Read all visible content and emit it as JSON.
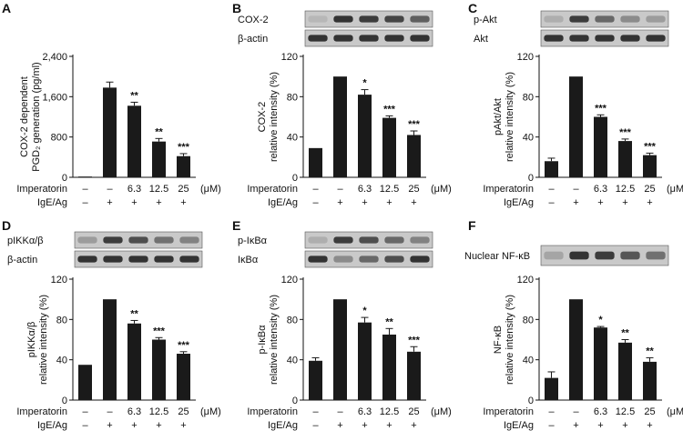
{
  "figure": {
    "rows": {
      "treatment_label": "Imperatorin",
      "stim_label": "IgE/Ag",
      "treatment": [
        "–",
        "–",
        "6.3",
        "12.5",
        "25"
      ],
      "stim": [
        "–",
        "+",
        "+",
        "+",
        "+"
      ],
      "unit": "(μM)"
    }
  },
  "chart_data": [
    {
      "panel": "A",
      "type": "bar",
      "ylabel_lines": [
        "COX-2 dependent",
        "PGD₂ generation (pg/ml)"
      ],
      "ylim": [
        0,
        2400
      ],
      "yticks": [
        "0",
        "800",
        "1,600",
        "2,400"
      ],
      "ytick_values": [
        0,
        800,
        1600,
        2400
      ],
      "values": [
        15,
        1780,
        1420,
        710,
        420
      ],
      "errors": [
        0,
        110,
        70,
        60,
        50
      ],
      "sig": [
        "",
        "",
        "**",
        "**",
        "***"
      ],
      "blots": []
    },
    {
      "panel": "B",
      "type": "bar",
      "ylabel_lines": [
        "COX-2",
        "relative intensity (%)"
      ],
      "ylim": [
        0,
        120
      ],
      "yticks": [
        "0",
        "40",
        "80",
        "120"
      ],
      "ytick_values": [
        0,
        40,
        80,
        120
      ],
      "values": [
        29,
        100,
        82,
        59,
        42
      ],
      "errors": [
        0,
        0,
        5,
        2,
        4
      ],
      "sig": [
        "",
        "",
        "*",
        "***",
        "***"
      ],
      "blots": [
        {
          "label": "COX-2",
          "intensity": [
            0.1,
            0.85,
            0.8,
            0.75,
            0.6
          ]
        },
        {
          "label": "β-actin",
          "intensity": [
            0.85,
            0.85,
            0.85,
            0.85,
            0.85
          ]
        }
      ]
    },
    {
      "panel": "C",
      "type": "bar",
      "ylabel_lines": [
        "pAkt/Akt",
        "relative intensity (%)"
      ],
      "ylim": [
        0,
        120
      ],
      "yticks": [
        "0",
        "40",
        "80",
        "120"
      ],
      "ytick_values": [
        0,
        40,
        80,
        120
      ],
      "values": [
        16,
        100,
        60,
        36,
        22
      ],
      "errors": [
        3,
        0,
        2,
        2,
        2
      ],
      "sig": [
        "",
        "",
        "***",
        "***",
        "***"
      ],
      "blots": [
        {
          "label": "p-Akt",
          "intensity": [
            0.15,
            0.8,
            0.55,
            0.35,
            0.25
          ]
        },
        {
          "label": "Akt",
          "intensity": [
            0.85,
            0.85,
            0.85,
            0.85,
            0.85
          ]
        }
      ]
    },
    {
      "panel": "D",
      "type": "bar",
      "ylabel_lines": [
        "pIKKα/β",
        "relative intensity (%)"
      ],
      "ylim": [
        0,
        120
      ],
      "yticks": [
        "0",
        "40",
        "80",
        "120"
      ],
      "ytick_values": [
        0,
        40,
        80,
        120
      ],
      "values": [
        35,
        100,
        76,
        60,
        46
      ],
      "errors": [
        0,
        0,
        3,
        2,
        2
      ],
      "sig": [
        "",
        "",
        "**",
        "***",
        "***"
      ],
      "blots": [
        {
          "label": "pIKKα/β",
          "intensity": [
            0.25,
            0.8,
            0.7,
            0.5,
            0.4
          ]
        },
        {
          "label": "β-actin",
          "intensity": [
            0.85,
            0.85,
            0.85,
            0.85,
            0.85
          ]
        }
      ]
    },
    {
      "panel": "E",
      "type": "bar",
      "ylabel_lines": [
        "p-IκBα",
        "relative intensity (%)"
      ],
      "ylim": [
        0,
        120
      ],
      "yticks": [
        "0",
        "40",
        "80",
        "120"
      ],
      "ytick_values": [
        0,
        40,
        80,
        120
      ],
      "values": [
        39,
        100,
        77,
        65,
        48
      ],
      "errors": [
        3,
        0,
        5,
        6,
        5
      ],
      "sig": [
        "",
        "",
        "*",
        "**",
        "***"
      ],
      "blots": [
        {
          "label": "p-IκBα",
          "intensity": [
            0.15,
            0.8,
            0.7,
            0.55,
            0.4
          ]
        },
        {
          "label": "IκBα",
          "intensity": [
            0.85,
            0.35,
            0.55,
            0.7,
            0.85
          ]
        }
      ]
    },
    {
      "panel": "F",
      "type": "bar",
      "ylabel_lines": [
        "NF-κB",
        "relative intensity (%)"
      ],
      "ylim": [
        0,
        120
      ],
      "yticks": [
        "0",
        "40",
        "80",
        "120"
      ],
      "ytick_values": [
        0,
        40,
        80,
        120
      ],
      "values": [
        22,
        100,
        72,
        57,
        38
      ],
      "errors": [
        6,
        0,
        1,
        3,
        4
      ],
      "sig": [
        "",
        "",
        "*",
        "**",
        "**"
      ],
      "blots": [
        {
          "label": "Nuclear NF-κB",
          "intensity": [
            0.2,
            0.85,
            0.8,
            0.65,
            0.5
          ]
        }
      ]
    }
  ]
}
